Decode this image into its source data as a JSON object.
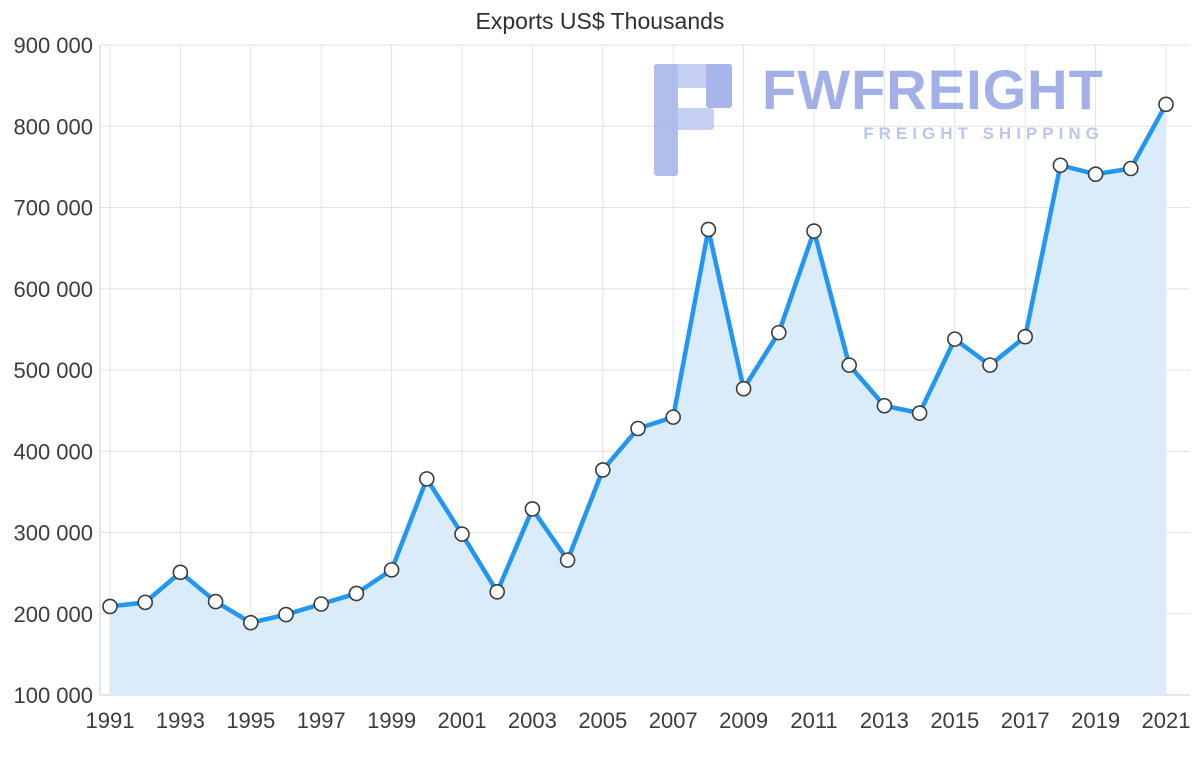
{
  "chart_data": {
    "type": "area",
    "title": "Exports US$ Thousands",
    "xlabel": "",
    "ylabel": "",
    "x": [
      1991,
      1992,
      1993,
      1994,
      1995,
      1996,
      1997,
      1998,
      1999,
      2000,
      2001,
      2002,
      2003,
      2004,
      2005,
      2006,
      2007,
      2008,
      2009,
      2010,
      2011,
      2012,
      2013,
      2014,
      2015,
      2016,
      2017,
      2018,
      2019,
      2020,
      2021
    ],
    "series": [
      {
        "name": "Exports",
        "values": [
          209000,
          214000,
          251000,
          215000,
          189000,
          199000,
          212000,
          225000,
          254000,
          366000,
          298000,
          227000,
          329000,
          266000,
          377000,
          428000,
          442000,
          673000,
          477000,
          546000,
          671000,
          506000,
          456000,
          447000,
          538000,
          506000,
          541000,
          752000,
          741000,
          748000,
          827000
        ]
      }
    ],
    "xticks": [
      1991,
      1993,
      1995,
      1997,
      1999,
      2001,
      2003,
      2005,
      2007,
      2009,
      2011,
      2013,
      2015,
      2017,
      2019,
      2021
    ],
    "ylim": [
      100000,
      900000
    ],
    "ytick_step": 100000,
    "grid": true,
    "legend": "none",
    "colors": {
      "line": "#2196f3",
      "fill": "#daebfa",
      "marker_fill": "#ffffff",
      "marker_stroke": "#3b3b3b",
      "grid": "#e4e4e4",
      "axis": "#cccccc",
      "tick_text": "#3c3c3c",
      "title_text": "#2f2f2f"
    }
  },
  "watermark": {
    "brand": "FWFREIGHT",
    "subtitle": "FREIGHT SHIPPING",
    "brand_color": "#8a9be2",
    "subtitle_color": "#a9b6ea"
  }
}
